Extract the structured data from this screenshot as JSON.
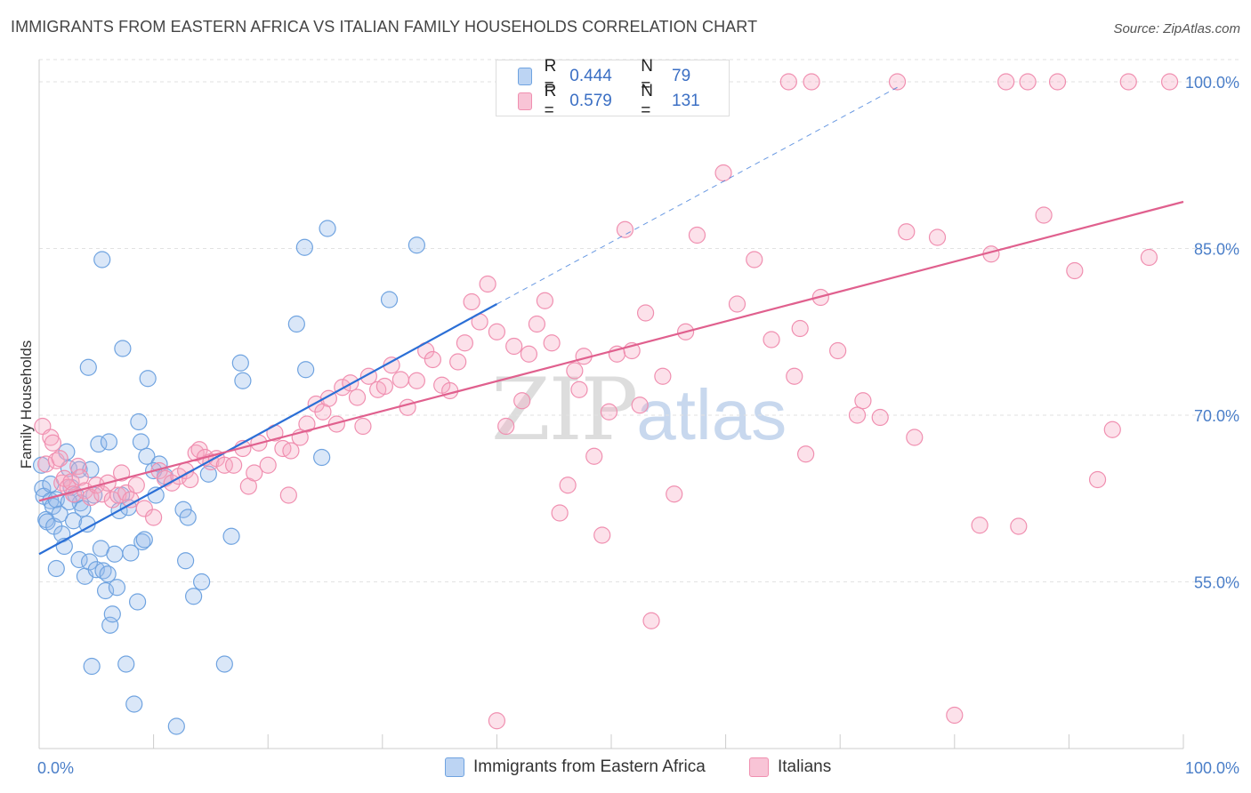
{
  "title": "IMMIGRANTS FROM EASTERN AFRICA VS ITALIAN FAMILY HOUSEHOLDS CORRELATION CHART",
  "source": "Source: ZipAtlas.com",
  "watermark": {
    "zip": "ZIP",
    "atlas": "atlas"
  },
  "legend": {
    "r_label": "R =",
    "n_label": "N =",
    "items": [
      {
        "r": "0.444",
        "n": "79",
        "color": "#6fa3e0"
      },
      {
        "r": "0.579",
        "n": "131",
        "color": "#f08fb0"
      }
    ]
  },
  "bottom_legend": [
    "Immigrants from Eastern Africa",
    "Italians"
  ],
  "chart_data": {
    "type": "scatter",
    "ylabel": "Family Households",
    "xlim": [
      0,
      100
    ],
    "ylim": [
      40,
      102
    ],
    "x_tick_labels": [
      "0.0%",
      "100.0%"
    ],
    "y_ticks": [
      55,
      70,
      85,
      100
    ],
    "y_tick_labels": [
      "55.0%",
      "70.0%",
      "85.0%",
      "100.0%"
    ],
    "grid": true,
    "series": [
      {
        "name": "Immigrants from Eastern Africa",
        "color": "#6fa3e0",
        "line_color": "#2b6fd6",
        "trend": {
          "x0": 0,
          "y0": 57.5,
          "x1": 40,
          "y1": 80,
          "dash_to_x": 75,
          "dash_to_y": 99.5
        },
        "points": [
          [
            0.2,
            65.5
          ],
          [
            0.3,
            63.4
          ],
          [
            0.4,
            62.7
          ],
          [
            0.6,
            60.6
          ],
          [
            0.7,
            60.4
          ],
          [
            1.0,
            62.3
          ],
          [
            1.2,
            61.8
          ],
          [
            1.3,
            60.0
          ],
          [
            1.5,
            62.4
          ],
          [
            1.5,
            56.2
          ],
          [
            1.8,
            61.1
          ],
          [
            2.0,
            59.3
          ],
          [
            2.2,
            58.2
          ],
          [
            2.4,
            66.7
          ],
          [
            2.6,
            65.2
          ],
          [
            2.8,
            63.5
          ],
          [
            3.0,
            60.5
          ],
          [
            3.2,
            62.8
          ],
          [
            3.5,
            65.1
          ],
          [
            3.5,
            57.0
          ],
          [
            3.6,
            62.1
          ],
          [
            3.8,
            61.6
          ],
          [
            4.0,
            55.5
          ],
          [
            4.2,
            60.2
          ],
          [
            4.4,
            56.8
          ],
          [
            4.5,
            65.1
          ],
          [
            4.6,
            47.4
          ],
          [
            4.8,
            62.8
          ],
          [
            5.0,
            56.1
          ],
          [
            5.2,
            67.4
          ],
          [
            5.4,
            58.0
          ],
          [
            5.6,
            56.0
          ],
          [
            5.8,
            54.2
          ],
          [
            6.0,
            55.7
          ],
          [
            6.2,
            51.1
          ],
          [
            6.4,
            52.1
          ],
          [
            6.6,
            57.5
          ],
          [
            6.8,
            54.5
          ],
          [
            7.0,
            61.4
          ],
          [
            7.2,
            62.8
          ],
          [
            7.3,
            76.0
          ],
          [
            7.6,
            47.6
          ],
          [
            7.8,
            61.7
          ],
          [
            8.0,
            57.6
          ],
          [
            8.3,
            44.0
          ],
          [
            8.6,
            53.2
          ],
          [
            8.7,
            69.4
          ],
          [
            8.9,
            67.6
          ],
          [
            9.0,
            58.6
          ],
          [
            9.2,
            58.8
          ],
          [
            9.4,
            66.3
          ],
          [
            9.5,
            73.3
          ],
          [
            10.2,
            62.8
          ],
          [
            10.5,
            65.6
          ],
          [
            11.0,
            64.5
          ],
          [
            12.0,
            42.0
          ],
          [
            12.6,
            61.5
          ],
          [
            12.8,
            56.9
          ],
          [
            13.0,
            60.8
          ],
          [
            13.5,
            53.7
          ],
          [
            14.2,
            55.0
          ],
          [
            14.8,
            64.7
          ],
          [
            16.2,
            47.6
          ],
          [
            16.8,
            59.1
          ],
          [
            17.6,
            74.7
          ],
          [
            17.8,
            73.1
          ],
          [
            22.5,
            78.2
          ],
          [
            23.2,
            85.1
          ],
          [
            23.3,
            74.1
          ],
          [
            24.7,
            66.2
          ],
          [
            25.2,
            86.8
          ],
          [
            30.6,
            80.4
          ],
          [
            33.0,
            85.3
          ],
          [
            5.5,
            84.0
          ],
          [
            4.3,
            74.3
          ],
          [
            6.1,
            67.6
          ],
          [
            10.0,
            65.0
          ],
          [
            2.6,
            62.2
          ],
          [
            1.0,
            63.8
          ]
        ]
      },
      {
        "name": "Italians",
        "color": "#f08fb0",
        "line_color": "#e0608e",
        "trend": {
          "x0": 0,
          "y0": 62.3,
          "x1": 100,
          "y1": 89.2
        },
        "points": [
          [
            0.3,
            69.0
          ],
          [
            0.6,
            65.6
          ],
          [
            1.0,
            68.0
          ],
          [
            1.2,
            67.5
          ],
          [
            1.5,
            65.9
          ],
          [
            1.8,
            66.1
          ],
          [
            2.0,
            63.9
          ],
          [
            2.2,
            64.3
          ],
          [
            2.5,
            63.5
          ],
          [
            2.8,
            64.0
          ],
          [
            3.0,
            62.9
          ],
          [
            3.4,
            65.4
          ],
          [
            3.6,
            64.4
          ],
          [
            4.0,
            63.2
          ],
          [
            4.5,
            62.6
          ],
          [
            5.0,
            63.7
          ],
          [
            5.5,
            62.9
          ],
          [
            6.0,
            63.9
          ],
          [
            6.4,
            62.4
          ],
          [
            6.9,
            62.8
          ],
          [
            7.2,
            64.8
          ],
          [
            7.6,
            63.0
          ],
          [
            8.0,
            62.4
          ],
          [
            8.5,
            63.7
          ],
          [
            9.2,
            61.6
          ],
          [
            10.0,
            60.8
          ],
          [
            10.5,
            65.0
          ],
          [
            11.0,
            64.3
          ],
          [
            11.6,
            63.9
          ],
          [
            12.2,
            64.5
          ],
          [
            12.8,
            65.0
          ],
          [
            13.2,
            64.2
          ],
          [
            13.7,
            66.6
          ],
          [
            14.0,
            66.9
          ],
          [
            14.5,
            66.2
          ],
          [
            15.0,
            65.8
          ],
          [
            15.5,
            66.1
          ],
          [
            16.2,
            65.5
          ],
          [
            17.0,
            65.5
          ],
          [
            17.8,
            67.0
          ],
          [
            18.3,
            63.6
          ],
          [
            18.8,
            64.8
          ],
          [
            19.2,
            67.5
          ],
          [
            20.0,
            65.5
          ],
          [
            20.6,
            68.4
          ],
          [
            21.3,
            67.0
          ],
          [
            22.0,
            66.8
          ],
          [
            22.8,
            68.0
          ],
          [
            23.4,
            69.2
          ],
          [
            24.2,
            71.0
          ],
          [
            24.8,
            70.3
          ],
          [
            25.3,
            71.5
          ],
          [
            26.0,
            69.2
          ],
          [
            26.5,
            72.5
          ],
          [
            27.2,
            72.9
          ],
          [
            27.8,
            71.6
          ],
          [
            28.3,
            69.0
          ],
          [
            28.8,
            73.5
          ],
          [
            29.6,
            72.3
          ],
          [
            30.2,
            72.6
          ],
          [
            30.8,
            74.5
          ],
          [
            31.6,
            73.2
          ],
          [
            32.2,
            70.7
          ],
          [
            33.0,
            73.1
          ],
          [
            33.8,
            75.8
          ],
          [
            34.4,
            75.0
          ],
          [
            35.2,
            72.7
          ],
          [
            35.9,
            72.2
          ],
          [
            36.6,
            74.8
          ],
          [
            37.2,
            76.5
          ],
          [
            37.8,
            80.2
          ],
          [
            38.5,
            78.4
          ],
          [
            39.2,
            81.8
          ],
          [
            40.0,
            77.5
          ],
          [
            40.8,
            69.0
          ],
          [
            41.5,
            76.2
          ],
          [
            42.2,
            71.3
          ],
          [
            42.8,
            75.5
          ],
          [
            43.5,
            78.2
          ],
          [
            44.2,
            80.3
          ],
          [
            44.8,
            76.5
          ],
          [
            45.5,
            61.2
          ],
          [
            46.2,
            63.7
          ],
          [
            46.8,
            74.0
          ],
          [
            47.2,
            72.3
          ],
          [
            48.5,
            66.3
          ],
          [
            49.2,
            59.2
          ],
          [
            49.8,
            70.3
          ],
          [
            50.5,
            75.5
          ],
          [
            51.2,
            86.7
          ],
          [
            51.8,
            75.8
          ],
          [
            52.5,
            70.9
          ],
          [
            53.0,
            79.2
          ],
          [
            53.5,
            51.5
          ],
          [
            54.5,
            73.5
          ],
          [
            55.5,
            62.9
          ],
          [
            56.5,
            77.5
          ],
          [
            57.5,
            86.2
          ],
          [
            59.8,
            91.8
          ],
          [
            61.0,
            80.0
          ],
          [
            62.5,
            84.0
          ],
          [
            64.0,
            76.8
          ],
          [
            65.5,
            100.0
          ],
          [
            66.0,
            73.5
          ],
          [
            67.5,
            100.0
          ],
          [
            68.3,
            80.6
          ],
          [
            69.8,
            75.8
          ],
          [
            71.5,
            70.0
          ],
          [
            72.0,
            71.3
          ],
          [
            73.5,
            69.8
          ],
          [
            75.0,
            100.0
          ],
          [
            75.8,
            86.5
          ],
          [
            76.5,
            68.0
          ],
          [
            78.5,
            86.0
          ],
          [
            80.0,
            43.0
          ],
          [
            82.2,
            60.1
          ],
          [
            83.2,
            84.5
          ],
          [
            84.5,
            100.0
          ],
          [
            85.6,
            60.0
          ],
          [
            86.4,
            100.0
          ],
          [
            87.8,
            88.0
          ],
          [
            89.0,
            100.0
          ],
          [
            90.5,
            83.0
          ],
          [
            92.5,
            64.2
          ],
          [
            93.8,
            68.7
          ],
          [
            95.2,
            100.0
          ],
          [
            97.0,
            84.2
          ],
          [
            98.8,
            100.0
          ],
          [
            40.0,
            42.5
          ],
          [
            66.5,
            77.8
          ],
          [
            67.0,
            66.5
          ],
          [
            47.6,
            75.3
          ],
          [
            21.8,
            62.8
          ]
        ]
      }
    ]
  }
}
